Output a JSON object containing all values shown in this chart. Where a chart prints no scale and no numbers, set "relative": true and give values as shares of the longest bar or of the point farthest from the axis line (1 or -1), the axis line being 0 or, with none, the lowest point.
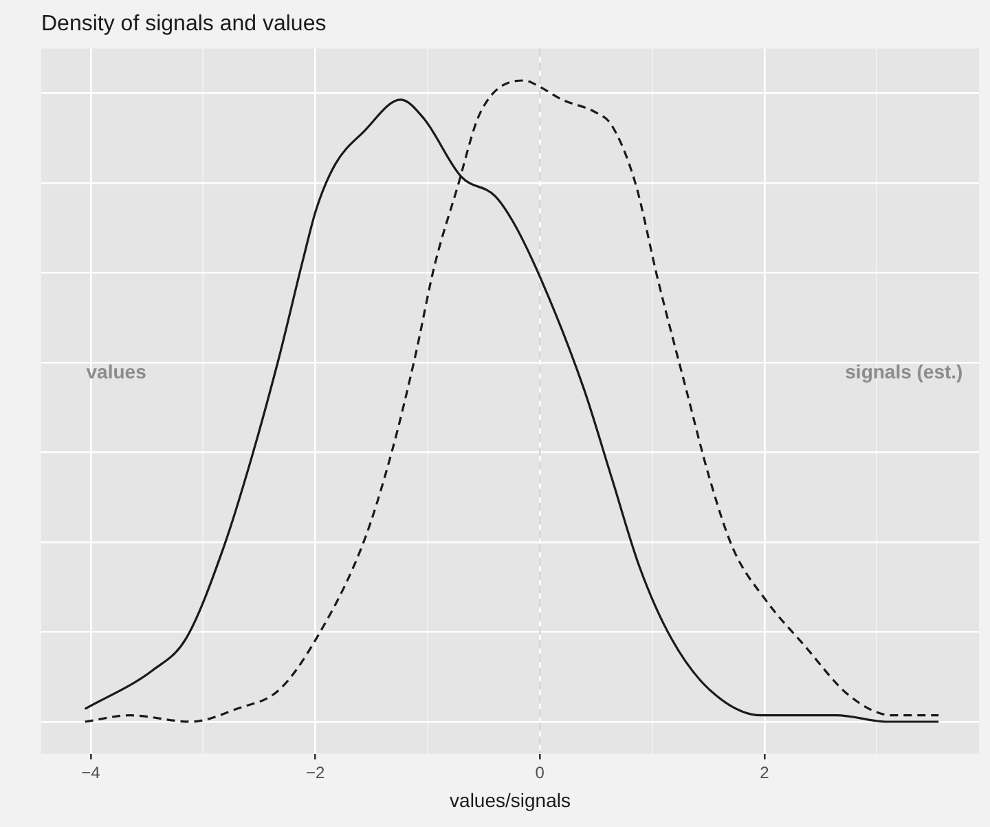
{
  "chart_data": {
    "type": "line",
    "title": "Density of signals and values",
    "xlabel": "values/signals",
    "relative": true,
    "grid": true,
    "legend": false,
    "marker": "none",
    "xlim": [
      -4.44,
      3.91
    ],
    "xticks": [
      -4,
      {
        "value": -3,
        "label": null
      },
      -2,
      {
        "value": -1,
        "label": null
      },
      0,
      {
        "value": 1,
        "label": null
      },
      2,
      {
        "value": 3,
        "label": null
      }
    ],
    "series": [
      {
        "color": "#1a1a1a",
        "line_style": "solid",
        "x": [
          -4.05,
          -3.45,
          -3.15,
          -2.82,
          -2.57,
          -2.32,
          -2.11,
          -1.99,
          -1.82,
          -1.57,
          -1.24,
          -1.03,
          -0.7,
          -0.4,
          -0.24,
          0.01,
          0.39,
          0.64,
          0.89,
          1.17,
          1.51,
          1.97,
          2.64,
          3.1,
          3.55
        ],
        "values": [
          0.02,
          0.08,
          0.13,
          0.27,
          0.41,
          0.57,
          0.72,
          0.8,
          0.87,
          0.92,
          0.97,
          0.94,
          0.85,
          0.82,
          0.78,
          0.69,
          0.52,
          0.38,
          0.24,
          0.13,
          0.05,
          0.01,
          0.01,
          0,
          0
        ]
      },
      {
        "color": "#1a1a1a",
        "line_style": "dashed",
        "x": [
          -4.05,
          -3.65,
          -3.11,
          -2.7,
          -2.32,
          -1.99,
          -1.57,
          -1.32,
          -1.11,
          -0.94,
          -0.74,
          -0.53,
          -0.14,
          0,
          0.2,
          0.5,
          0.64,
          0.85,
          1.05,
          1.3,
          1.51,
          1.72,
          2.01,
          2.35,
          2.76,
          3.14,
          3.55
        ],
        "values": [
          0,
          0.01,
          0,
          0.02,
          0.05,
          0.13,
          0.28,
          0.42,
          0.57,
          0.71,
          0.83,
          0.95,
          1,
          0.99,
          0.97,
          0.95,
          0.93,
          0.84,
          0.69,
          0.52,
          0.38,
          0.27,
          0.19,
          0.12,
          0.04,
          0.01,
          0.01
        ]
      }
    ],
    "ref_lines": [
      {
        "axis": "x",
        "value": 0,
        "color": "#c8c8c8",
        "line_style": "dashed"
      }
    ],
    "annotations": [
      "values",
      "signals (est.)"
    ]
  }
}
